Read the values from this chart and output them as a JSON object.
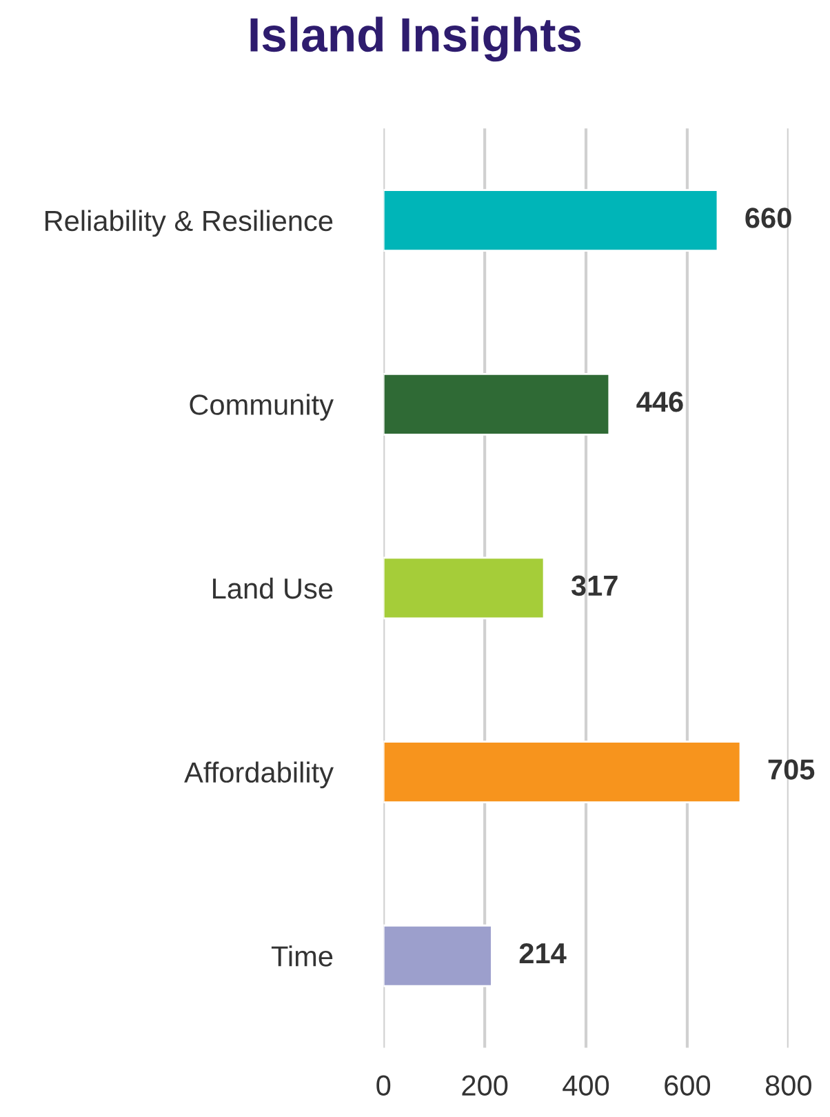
{
  "chart_data": {
    "type": "bar",
    "title": "Island Insights",
    "orientation": "horizontal",
    "categories": [
      "Reliability & Resilience",
      "Community",
      "Land Use",
      "Affordability",
      "Time"
    ],
    "values": [
      660,
      446,
      317,
      705,
      214
    ],
    "colors": [
      "#00b5b8",
      "#2f6a35",
      "#a5cd39",
      "#f7941d",
      "#9c9fcc"
    ],
    "xlim": [
      0,
      800
    ],
    "xticks": [
      0,
      200,
      400,
      600,
      800
    ],
    "grid": "x",
    "data_labels": true,
    "legend": false
  }
}
